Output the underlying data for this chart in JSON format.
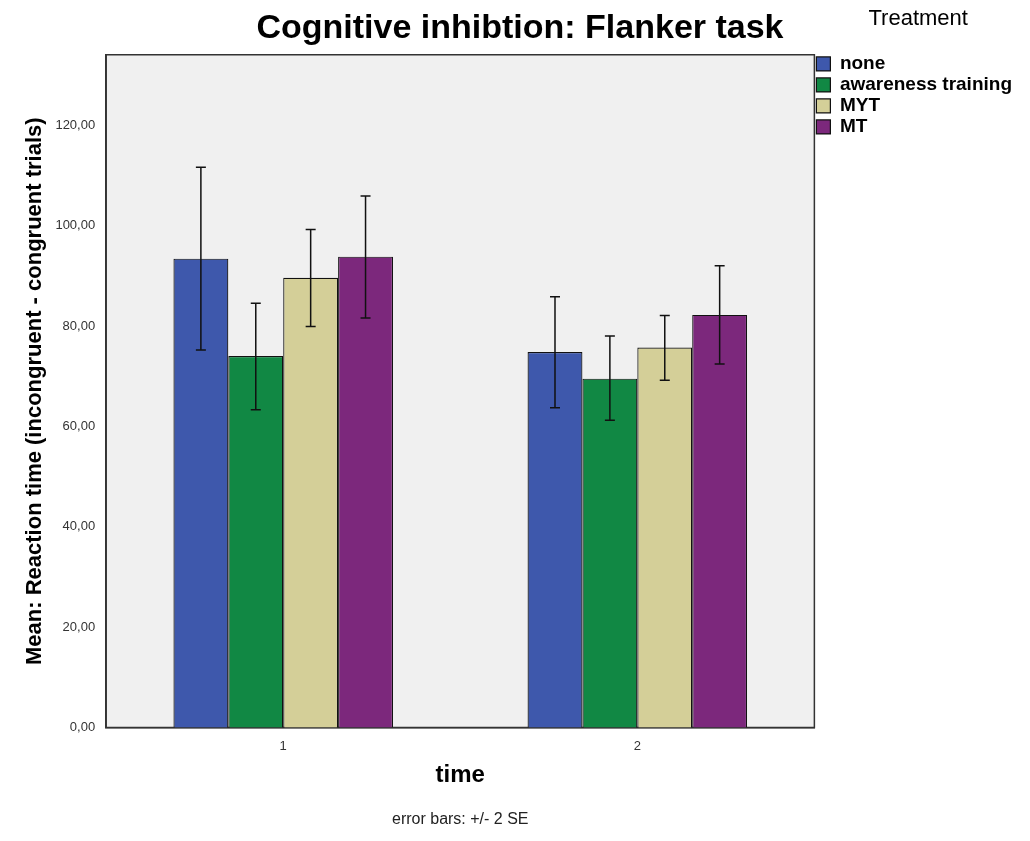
{
  "chart_data": {
    "type": "bar",
    "title": "Cognitive inhibtion: Flanker task",
    "xlabel": "time",
    "ylabel": "Mean: Reaction time (incongruent - congruent trials)",
    "legend_title": "Treatment",
    "legend": "right",
    "grid": false,
    "categories": [
      "1",
      "2"
    ],
    "ylim": [
      0,
      134
    ],
    "yticks": [
      {
        "value": 0,
        "label": "0,00"
      },
      {
        "value": 20,
        "label": "20,00"
      },
      {
        "value": 40,
        "label": "40,00"
      },
      {
        "value": 60,
        "label": "60,00"
      },
      {
        "value": 80,
        "label": "80,00"
      },
      {
        "value": 100,
        "label": "100,00"
      },
      {
        "value": 120,
        "label": "120,00"
      }
    ],
    "series": [
      {
        "name": "none",
        "color": "#3e58ac",
        "values": [
          93.4,
          74.8
        ],
        "errors": [
          [
            75.2,
            111.6
          ],
          [
            63.7,
            85.8
          ]
        ]
      },
      {
        "name": "awareness training",
        "color": "#118844",
        "values": [
          74,
          69.5
        ],
        "errors": [
          [
            63.3,
            84.5
          ],
          [
            61.2,
            78
          ]
        ]
      },
      {
        "name": "MYT",
        "color": "#d4cf98",
        "values": [
          89.6,
          75.7
        ],
        "errors": [
          [
            79.9,
            99.2
          ],
          [
            69.2,
            82.1
          ]
        ]
      },
      {
        "name": "MT",
        "color": "#7c287c",
        "values": [
          93.8,
          82.2
        ],
        "errors": [
          [
            81.6,
            105.9
          ],
          [
            72.4,
            92
          ]
        ]
      }
    ],
    "annotations": [
      "error bars: +/- 2 SE"
    ]
  }
}
